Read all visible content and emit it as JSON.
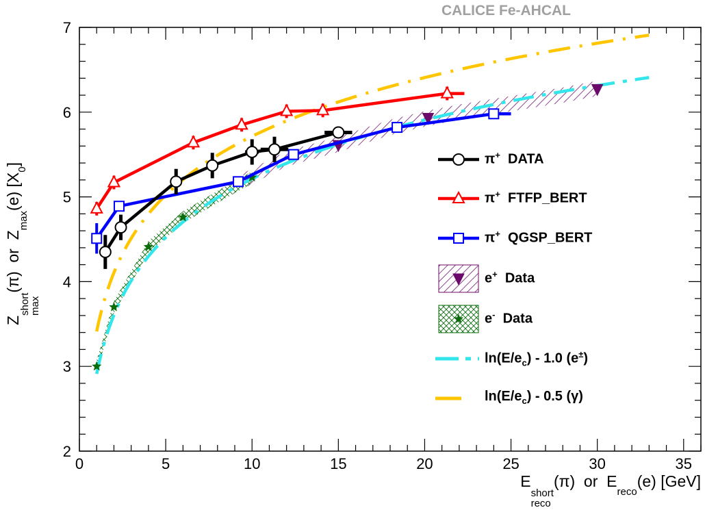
{
  "chart_data": {
    "type": "line",
    "title": "CALICE Fe-AHCAL",
    "xlabel": {
      "base1": "E",
      "sup1": "short",
      "sub1": "reco",
      "arg1": "(π)",
      "or": "or",
      "base2": "E",
      "sub2": "reco",
      "arg2": "(e) [GeV]"
    },
    "ylabel": {
      "base1": "Z",
      "sup1": "short",
      "sub1": "max",
      "arg1": "(π)",
      "or": "or",
      "base2": "Z",
      "sub2": "max",
      "arg2": "(e) [X",
      "sub3": "0",
      "close": "]"
    },
    "xlim": [
      0,
      36
    ],
    "ylim": [
      2,
      7
    ],
    "xticks": [
      0,
      5,
      10,
      15,
      20,
      25,
      30,
      35
    ],
    "yticks": [
      2,
      3,
      4,
      5,
      6,
      7
    ],
    "grid": false,
    "legend_position": "right",
    "series": [
      {
        "name": "π⁺ DATA",
        "kind": "line",
        "color": "#000000",
        "marker": "circle",
        "x": [
          1.5,
          2.4,
          5.6,
          7.7,
          10.0,
          11.3,
          15.0
        ],
        "y": [
          4.35,
          4.64,
          5.18,
          5.37,
          5.53,
          5.56,
          5.76
        ],
        "yerr": [
          0.2,
          0.15,
          0.15,
          0.15,
          0.15,
          0.15,
          0.05
        ],
        "xerr": [
          0.1,
          0.1,
          0.1,
          0.1,
          0.4,
          0.8,
          0.8
        ]
      },
      {
        "name": "π⁺ FTFP_BERT",
        "kind": "line",
        "color": "#ff0000",
        "marker": "triangle",
        "x": [
          1.0,
          2.0,
          6.6,
          9.4,
          12.0,
          14.1,
          21.3
        ],
        "y": [
          4.86,
          5.17,
          5.64,
          5.85,
          6.01,
          6.02,
          6.22
        ],
        "xend": 22.3
      },
      {
        "name": "π⁺ QGSP_BERT",
        "kind": "line",
        "color": "#0000ff",
        "marker": "square",
        "x": [
          1.0,
          2.3,
          9.2,
          12.4,
          18.4,
          24.0
        ],
        "y": [
          4.51,
          4.89,
          5.18,
          5.5,
          5.82,
          5.98
        ],
        "xend": 25.0
      },
      {
        "name": "e⁺ Data",
        "kind": "band",
        "color": "#6b0a6b",
        "x": [
          9.5,
          12.0,
          15.0,
          18.0,
          20.0,
          22.0,
          25.0,
          28.0,
          30.0
        ],
        "y": [
          5.19,
          5.45,
          5.62,
          5.82,
          5.92,
          6.0,
          6.1,
          6.2,
          6.28
        ],
        "markers_x": [
          15.0,
          20.2,
          30.0
        ],
        "markers_y": [
          5.61,
          5.93,
          6.27
        ]
      },
      {
        "name": "e⁻ Data",
        "kind": "band",
        "color": "#0a6b0a",
        "x": [
          1.0,
          2.0,
          4.0,
          6.0,
          8.0,
          10.0
        ],
        "y": [
          3.0,
          3.7,
          4.41,
          4.76,
          5.0,
          5.23
        ],
        "markers_x": [
          1.0,
          2.0,
          4.0,
          6.0,
          10.0
        ],
        "markers_y": [
          3.0,
          3.7,
          4.41,
          4.76,
          5.23
        ]
      },
      {
        "name": "ln(E/e_c) - 1.0 (e±)",
        "kind": "theory",
        "color": "#32e6ec",
        "offset": -1.0,
        "xstart": 1.0,
        "xend": 33.0
      },
      {
        "name": "ln(E/e_c) - 0.5 (γ)",
        "kind": "theory",
        "color": "#ffc600",
        "offset": -0.5,
        "xstart": 1.0,
        "xend": 33.0
      }
    ]
  },
  "legend": [
    {
      "sym": "π",
      "sup": "+",
      "text": "DATA"
    },
    {
      "sym": "π",
      "sup": "+",
      "text": "FTFP_BERT"
    },
    {
      "sym": "π",
      "sup": "+",
      "text": "QGSP_BERT"
    },
    {
      "sym": "e",
      "sup": "+",
      "text": "Data"
    },
    {
      "sym": "e",
      "sup": "-",
      "text": "Data"
    },
    {
      "pre": "ln(E/e",
      "sub": "c",
      "mid": ") - 1.0  (e",
      "sup": "±",
      "post": ")"
    },
    {
      "pre": "ln(E/e",
      "sub": "c",
      "mid": ") - 0.5  (γ)"
    }
  ],
  "colors": {
    "axis": "#000000",
    "title": "#a0a0a0"
  }
}
